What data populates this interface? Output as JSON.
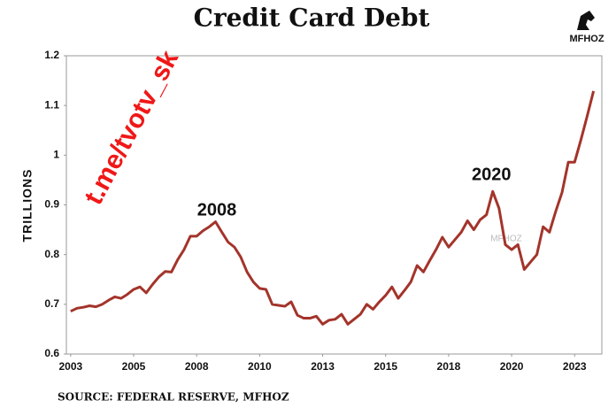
{
  "chart_data": {
    "type": "line",
    "title": "Credit Card Debt",
    "ylabel": "TRILLIONS",
    "source": "SOURCE: FEDERAL RESERVE, MFHOZ",
    "logo": "MFHOZ",
    "watermark": "t.me/tvotv_sk",
    "plot_watermark": "MFHOZ",
    "annotations": [
      {
        "text": "2008",
        "x": 2008.8,
        "y": 0.888
      },
      {
        "text": "2020",
        "x": 2019.7,
        "y": 0.959
      }
    ],
    "x": [
      2003,
      2003.25,
      2003.5,
      2003.75,
      2004,
      2004.25,
      2004.5,
      2004.75,
      2005,
      2005.25,
      2005.5,
      2005.75,
      2006,
      2006.25,
      2006.5,
      2006.75,
      2007,
      2007.25,
      2007.5,
      2007.75,
      2008,
      2008.25,
      2008.5,
      2008.75,
      2009,
      2009.25,
      2009.5,
      2009.75,
      2010,
      2010.25,
      2010.5,
      2010.75,
      2011,
      2011.25,
      2011.5,
      2011.75,
      2012,
      2012.25,
      2012.5,
      2012.75,
      2013,
      2013.25,
      2013.5,
      2013.75,
      2014,
      2014.25,
      2014.5,
      2014.75,
      2015,
      2015.25,
      2015.5,
      2015.75,
      2016,
      2016.25,
      2016.5,
      2016.75,
      2017,
      2017.25,
      2017.5,
      2017.75,
      2018,
      2018.25,
      2018.5,
      2018.75,
      2019,
      2019.25,
      2019.5,
      2019.75,
      2020,
      2020.25,
      2020.5,
      2020.75,
      2021,
      2021.25,
      2021.5,
      2021.75,
      2022,
      2022.25,
      2022.5,
      2022.75,
      2023,
      2023.25,
      2023.5,
      2023.75
    ],
    "series": [
      {
        "name": "Credit Card Debt",
        "color": "#a3342b",
        "values": [
          0.686,
          0.692,
          0.694,
          0.697,
          0.695,
          0.7,
          0.708,
          0.715,
          0.712,
          0.72,
          0.73,
          0.735,
          0.723,
          0.74,
          0.755,
          0.766,
          0.765,
          0.79,
          0.81,
          0.837,
          0.837,
          0.848,
          0.856,
          0.866,
          0.845,
          0.825,
          0.815,
          0.795,
          0.765,
          0.745,
          0.732,
          0.73,
          0.7,
          0.698,
          0.696,
          0.705,
          0.678,
          0.672,
          0.672,
          0.676,
          0.66,
          0.668,
          0.67,
          0.68,
          0.66,
          0.67,
          0.68,
          0.7,
          0.69,
          0.705,
          0.718,
          0.735,
          0.712,
          0.728,
          0.745,
          0.778,
          0.765,
          0.788,
          0.81,
          0.835,
          0.815,
          0.83,
          0.845,
          0.868,
          0.85,
          0.87,
          0.88,
          0.927,
          0.893,
          0.82,
          0.81,
          0.82,
          0.77,
          0.785,
          0.8,
          0.856,
          0.845,
          0.887,
          0.925,
          0.986,
          0.986,
          1.031,
          1.079,
          1.129
        ]
      }
    ],
    "xlim": [
      2002.83,
      2024.08
    ],
    "xticks": [
      2003,
      {
        "value": 2005.5,
        "label": "2005"
      },
      2008,
      {
        "value": 2010.5,
        "label": "2010"
      },
      2013,
      {
        "value": 2015.5,
        "label": "2015"
      },
      2018,
      {
        "value": 2020.5,
        "label": "2020"
      },
      2023
    ],
    "ylim": [
      0.6,
      1.2
    ],
    "yticks": [
      0.6,
      0.7,
      0.8,
      0.9,
      1,
      1.1,
      1.2
    ],
    "grid": false
  }
}
